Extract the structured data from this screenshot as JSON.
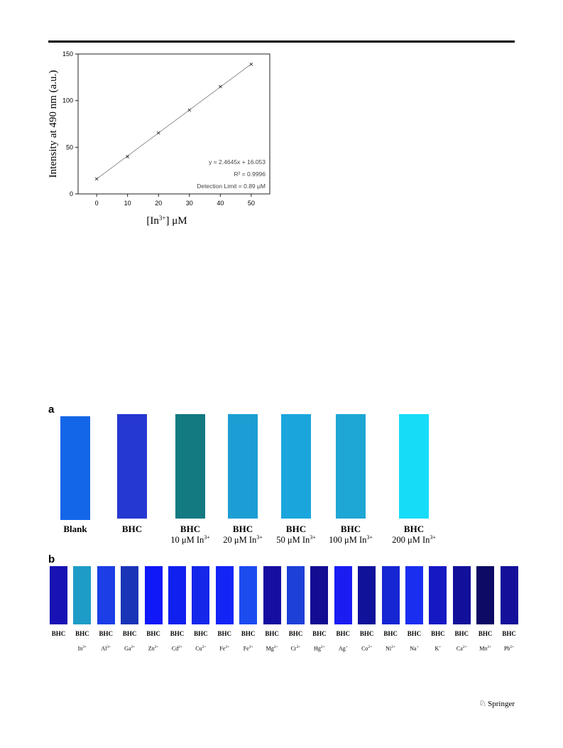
{
  "chart_data": {
    "type": "scatter",
    "x": [
      0,
      10,
      20,
      30,
      40,
      50
    ],
    "y": [
      16.1,
      40.0,
      65.4,
      90.0,
      115.0,
      139.0
    ],
    "fit": {
      "slope": 2.4645,
      "intercept": 16.053
    },
    "xlabel": "[In",
    "xlabel_sup": "3+",
    "xlabel_unit": "] μM",
    "ylabel": "Intensity at 490 nm (a.u.)",
    "xlim": [
      -6,
      56
    ],
    "ylim": [
      0,
      150
    ],
    "xticks": [
      "0",
      "10",
      "20",
      "30",
      "40",
      "50"
    ],
    "yticks": [
      "0",
      "50",
      "100",
      "150"
    ],
    "annotations": [
      "y = 2.4645x + 16.053",
      "R² = 0.9996",
      "Detection Limit = 0.89 μM"
    ],
    "grid": false
  },
  "panel_a": {
    "letter": "a",
    "strips": [
      {
        "label": "Blank",
        "sub": "",
        "sup": "",
        "color": "#1466e8"
      },
      {
        "label": "BHC",
        "sub": "",
        "sup": "",
        "color": "#2638d2"
      },
      {
        "label": "BHC",
        "sub": "10 μM In",
        "sup": "3+",
        "color": "#137a82"
      },
      {
        "label": "BHC",
        "sub": "20 μM In",
        "sup": "3+",
        "color": "#1c9ed4"
      },
      {
        "label": "BHC",
        "sub": "50 μM In",
        "sup": "3+",
        "color": "#1aa6dc"
      },
      {
        "label": "BHC",
        "sub": "100 μM In",
        "sup": "3+",
        "color": "#1ea7d4"
      },
      {
        "label": "BHC",
        "sub": "200 μM In",
        "sup": "3+",
        "color": "#16dcf8"
      }
    ]
  },
  "panel_b": {
    "letter": "b",
    "label": "BHC",
    "strips": [
      {
        "ion": "",
        "sup": "",
        "color": "#1812b4"
      },
      {
        "ion": "In",
        "sup": "3+",
        "color": "#1e9cc8"
      },
      {
        "ion": "Al",
        "sup": "3+",
        "color": "#1c3ee6"
      },
      {
        "ion": "Ga",
        "sup": "3+",
        "color": "#1a34b8"
      },
      {
        "ion": "Zn",
        "sup": "2+",
        "color": "#1018f8"
      },
      {
        "ion": "Cd",
        "sup": "2+",
        "color": "#1020ee"
      },
      {
        "ion": "Cu",
        "sup": "2+",
        "color": "#1626ea"
      },
      {
        "ion": "Fe",
        "sup": "2+",
        "color": "#1224f6"
      },
      {
        "ion": "Fe",
        "sup": "3+",
        "color": "#1c4cf0"
      },
      {
        "ion": "Mg",
        "sup": "2+",
        "color": "#160ea0"
      },
      {
        "ion": "Cr",
        "sup": "3+",
        "color": "#1c40d8"
      },
      {
        "ion": "Hg",
        "sup": "2+",
        "color": "#140c92"
      },
      {
        "ion": "Ag",
        "sup": "+",
        "color": "#1a1cf2"
      },
      {
        "ion": "Co",
        "sup": "2+",
        "color": "#10129a"
      },
      {
        "ion": "Ni",
        "sup": "2+",
        "color": "#1626d2"
      },
      {
        "ion": "Na",
        "sup": "+",
        "color": "#1a2ef0"
      },
      {
        "ion": "K",
        "sup": "+",
        "color": "#1618c4"
      },
      {
        "ion": "Ca",
        "sup": "2+",
        "color": "#12109a"
      },
      {
        "ion": "Mn",
        "sup": "2+",
        "color": "#0c0a64"
      },
      {
        "ion": "Pb",
        "sup": "2+",
        "color": "#14109a"
      }
    ]
  },
  "footer": {
    "publisher": "Springer",
    "logo_icon": "springer-horse-icon"
  }
}
